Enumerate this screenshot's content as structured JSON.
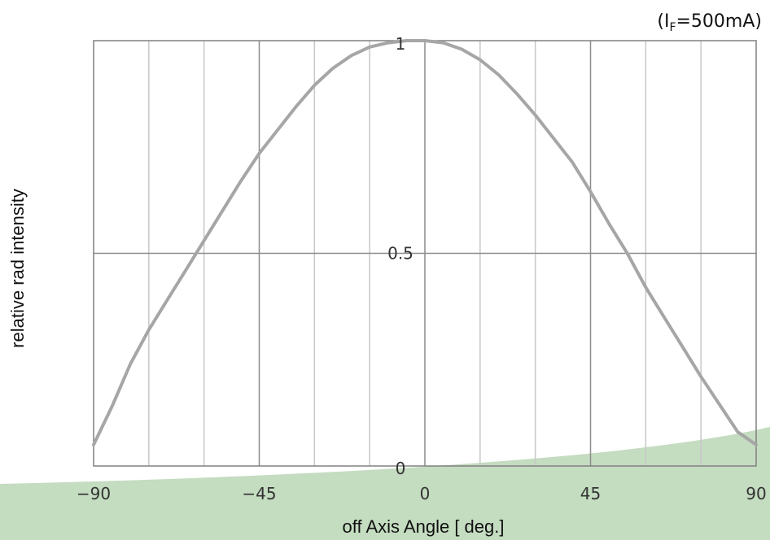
{
  "chart_data": {
    "type": "line",
    "condition": {
      "prefix": "(I",
      "subscript": "F",
      "suffix": "=500mA)"
    },
    "xlabel": "off Axis Angle [ deg.]",
    "ylabel": "relative rad intensity",
    "xlim": [
      -90,
      90
    ],
    "ylim": [
      0,
      1
    ],
    "x_ticks": [
      {
        "value": -90,
        "label": "−90"
      },
      {
        "value": -45,
        "label": "−45"
      },
      {
        "value": 0,
        "label": "0"
      },
      {
        "value": 45,
        "label": "45"
      },
      {
        "value": 90,
        "label": "90"
      }
    ],
    "y_ticks": [
      {
        "value": 0,
        "label": "0"
      },
      {
        "value": 0.5,
        "label": "0.5"
      },
      {
        "value": 1,
        "label": "1"
      }
    ],
    "x_minor_grid_step": 15,
    "grid": true,
    "series": [
      {
        "color": "#a6a6a6",
        "x": [
          -90,
          -85,
          -80,
          -75,
          -70,
          -65,
          -60,
          -55,
          -50,
          -45,
          -40,
          -35,
          -30,
          -25,
          -20,
          -15,
          -10,
          -5,
          0,
          5,
          10,
          15,
          20,
          25,
          30,
          35,
          40,
          45,
          50,
          55,
          60,
          65,
          70,
          75,
          80,
          85,
          90
        ],
        "y": [
          0.05,
          0.14,
          0.24,
          0.32,
          0.39,
          0.46,
          0.53,
          0.6,
          0.67,
          0.735,
          0.79,
          0.845,
          0.895,
          0.935,
          0.965,
          0.985,
          0.995,
          1.0,
          1.0,
          0.995,
          0.98,
          0.955,
          0.92,
          0.875,
          0.825,
          0.77,
          0.715,
          0.645,
          0.57,
          0.5,
          0.42,
          0.35,
          0.28,
          0.21,
          0.145,
          0.08,
          0.05
        ]
      }
    ],
    "background_shape_color": "#c4dcc0"
  }
}
